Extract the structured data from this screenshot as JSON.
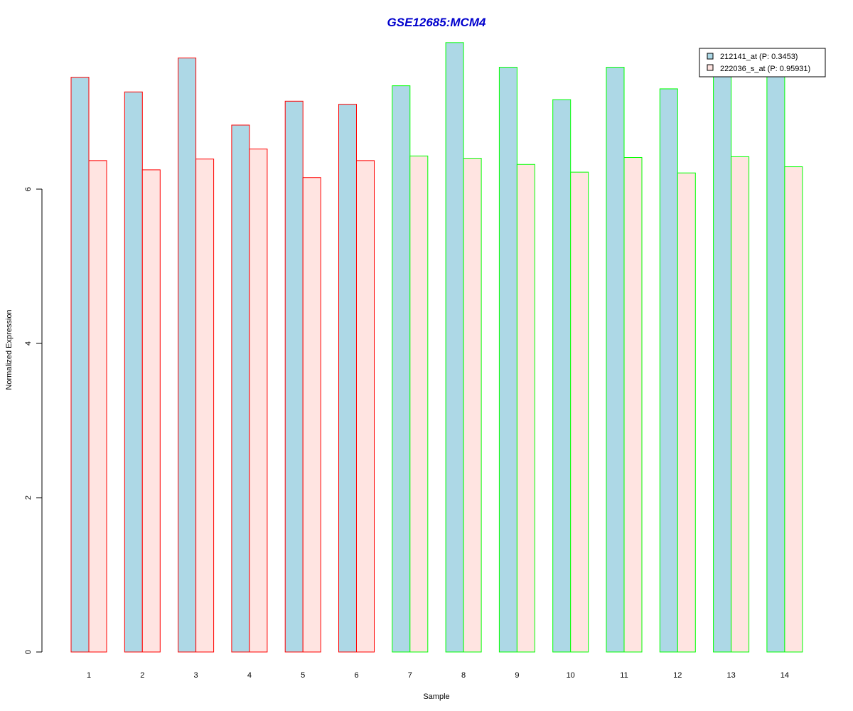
{
  "chart_data": {
    "type": "bar",
    "title": "GSE12685:MCM4",
    "xlabel": "Sample",
    "ylabel": "Normalized Expression",
    "categories": [
      "1",
      "2",
      "3",
      "4",
      "5",
      "6",
      "7",
      "8",
      "9",
      "10",
      "11",
      "12",
      "13",
      "14"
    ],
    "ylim": [
      0,
      8
    ],
    "yticks": [
      0,
      2,
      4,
      6
    ],
    "series": [
      {
        "name": "212141_at (P: 0.3453)",
        "fill": "#add8e6",
        "values": [
          7.45,
          7.26,
          7.7,
          6.83,
          7.14,
          7.1,
          7.34,
          7.9,
          7.58,
          7.16,
          7.58,
          7.3,
          7.48,
          7.5
        ]
      },
      {
        "name": "222036_s_at (P: 0.95931)",
        "fill": "#ffe4e1",
        "values": [
          6.37,
          6.25,
          6.39,
          6.52,
          6.15,
          6.37,
          6.43,
          6.4,
          6.32,
          6.22,
          6.41,
          6.21,
          6.42,
          6.29
        ]
      }
    ],
    "group_border_colors": [
      "#ff0000",
      "#ff0000",
      "#ff0000",
      "#ff0000",
      "#ff0000",
      "#ff0000",
      "#00ff00",
      "#00ff00",
      "#00ff00",
      "#00ff00",
      "#00ff00",
      "#00ff00",
      "#00ff00",
      "#00ff00"
    ],
    "title_color": "#0000cd",
    "legend_position": "top-right",
    "grid": false
  }
}
